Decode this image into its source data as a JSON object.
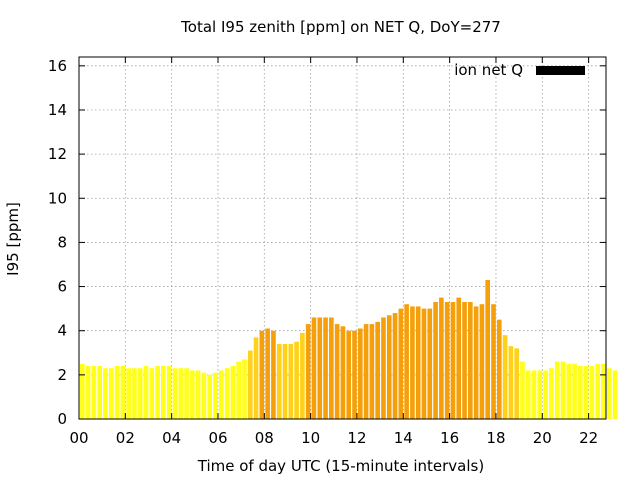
{
  "chart_data": {
    "type": "bar",
    "title": "Total I95 zenith [ppm] on NET Q, DoY=277",
    "xlabel": "Time of day UTC (15-minute intervals)",
    "ylabel": "I95 [ppm]",
    "x_range": [
      0,
      22.75
    ],
    "ylim": [
      0,
      16.4
    ],
    "y_ticks": [
      0,
      2,
      4,
      6,
      8,
      10,
      12,
      14,
      16
    ],
    "x_ticks": [
      0,
      2,
      4,
      6,
      8,
      10,
      12,
      14,
      16,
      18,
      20,
      22
    ],
    "x_tick_labels": [
      "00",
      "02",
      "04",
      "06",
      "08",
      "10",
      "12",
      "14",
      "16",
      "18",
      "20",
      "22"
    ],
    "grid": true,
    "legend": {
      "position": "top-right",
      "entries": [
        {
          "label": "ion net Q",
          "color": "#000000"
        }
      ]
    },
    "colors": {
      "low": "#ffff1a",
      "mid": "#ffd11a",
      "high": "#f5a00a"
    },
    "bin_minutes": 15,
    "start_hour": 0,
    "values": [
      2.5,
      2.4,
      2.4,
      2.4,
      2.3,
      2.3,
      2.4,
      2.4,
      2.3,
      2.3,
      2.3,
      2.4,
      2.3,
      2.4,
      2.4,
      2.4,
      2.3,
      2.3,
      2.3,
      2.2,
      2.2,
      2.1,
      2.0,
      2.1,
      2.2,
      2.3,
      2.4,
      2.6,
      2.7,
      3.1,
      3.7,
      4.0,
      4.1,
      4.0,
      3.4,
      3.4,
      3.4,
      3.5,
      3.9,
      4.3,
      4.6,
      4.6,
      4.6,
      4.6,
      4.3,
      4.2,
      4.0,
      4.0,
      4.1,
      4.3,
      4.3,
      4.4,
      4.6,
      4.7,
      4.8,
      5.0,
      5.2,
      5.1,
      5.1,
      5.0,
      5.0,
      5.3,
      5.5,
      5.3,
      5.3,
      5.5,
      5.3,
      5.3,
      5.1,
      5.2,
      6.3,
      5.2,
      4.5,
      3.8,
      3.3,
      3.2,
      2.6,
      2.2,
      2.2,
      2.2,
      2.2,
      2.3,
      2.6,
      2.6,
      2.5,
      2.5,
      2.4,
      2.4,
      2.4,
      2.5,
      2.5,
      2.3,
      2.2
    ]
  }
}
